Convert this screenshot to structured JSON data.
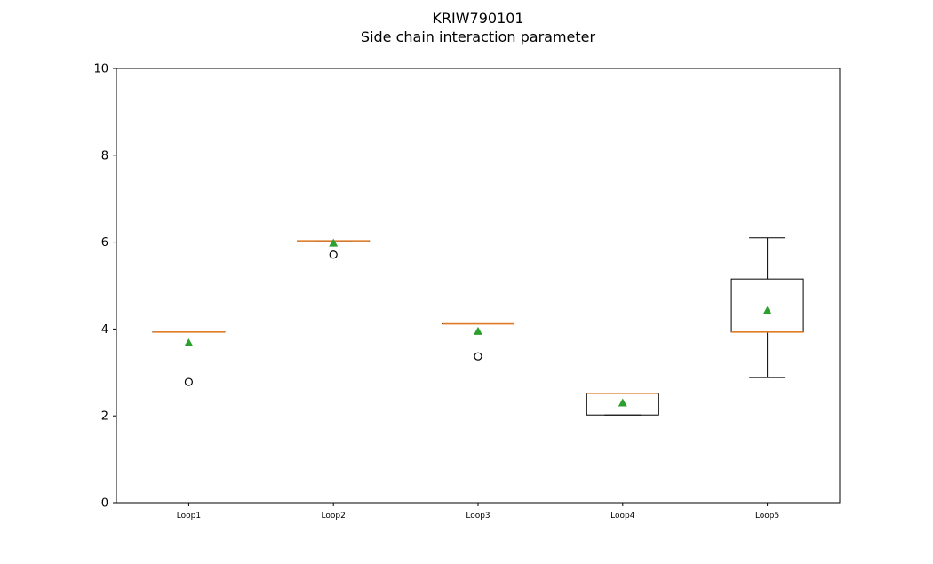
{
  "chart_data": {
    "type": "boxplot",
    "title": "KRIW790101",
    "subtitle": "Side chain interaction parameter",
    "xlabel": "",
    "ylabel": "",
    "ylim": [
      0,
      10
    ],
    "yticks": [
      "0",
      "2",
      "4",
      "6",
      "8",
      "10"
    ],
    "categories": [
      "Loop1",
      "Loop2",
      "Loop3",
      "Loop4",
      "Loop5"
    ],
    "boxes": [
      {
        "category": "Loop1",
        "whisker_low": 3.93,
        "q1": 3.93,
        "median": 3.93,
        "q3": 3.93,
        "whisker_high": 3.93,
        "mean": 3.68,
        "outliers": [
          2.78
        ]
      },
      {
        "category": "Loop2",
        "whisker_low": 6.03,
        "q1": 6.03,
        "median": 6.03,
        "q3": 6.03,
        "whisker_high": 6.03,
        "mean": 5.98,
        "outliers": [
          5.71
        ]
      },
      {
        "category": "Loop3",
        "whisker_low": 4.12,
        "q1": 4.12,
        "median": 4.12,
        "q3": 4.12,
        "whisker_high": 4.12,
        "mean": 3.95,
        "outliers": [
          3.37
        ]
      },
      {
        "category": "Loop4",
        "whisker_low": 2.02,
        "q1": 2.02,
        "median": 2.52,
        "q3": 2.52,
        "whisker_high": 2.52,
        "mean": 2.3,
        "outliers": []
      },
      {
        "category": "Loop5",
        "whisker_low": 2.88,
        "q1": 3.93,
        "median": 3.93,
        "q3": 5.15,
        "whisker_high": 6.1,
        "mean": 4.42,
        "outliers": []
      }
    ],
    "grid": false,
    "colors": {
      "box": "#000000",
      "median": "#e07b28",
      "mean": "#2ca02c",
      "outlier": "#000000"
    }
  }
}
